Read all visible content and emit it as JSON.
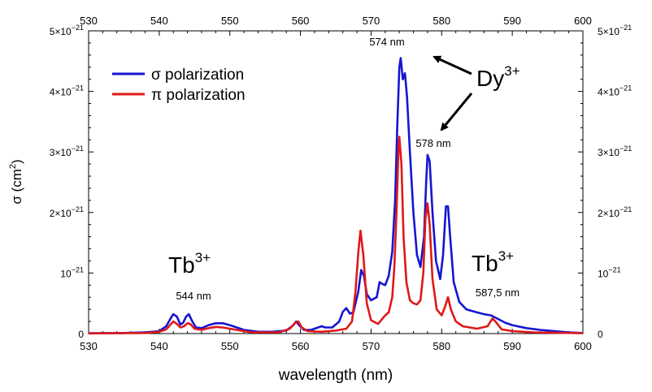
{
  "chart_data": {
    "type": "line",
    "title": "",
    "xlabel": "wavelength (nm)",
    "ylabel": "σ (cm²)",
    "ylabel_main": "σ (cm",
    "ylabel_sup": "2",
    "ylabel_close": ")",
    "xlim": [
      530,
      600
    ],
    "ylim": [
      0,
      5e-21
    ],
    "x_ticks": [
      530,
      540,
      550,
      560,
      570,
      580,
      590,
      600
    ],
    "x_tick_labels": [
      "530",
      "540",
      "550",
      "560",
      "570",
      "580",
      "590",
      "600"
    ],
    "y_ticks": [
      {
        "value": 0,
        "base": "0",
        "exp": ""
      },
      {
        "value": 1e-21,
        "base": "10",
        "exp": "−21"
      },
      {
        "value": 2e-21,
        "base": "2×10",
        "exp": "−21"
      },
      {
        "value": 3e-21,
        "base": "3×10",
        "exp": "−21"
      },
      {
        "value": 4e-21,
        "base": "4×10",
        "exp": "−21"
      },
      {
        "value": 5e-21,
        "base": "5×10",
        "exp": "−21"
      }
    ],
    "legend_position": "top-left",
    "series": [
      {
        "name": "σ polarization",
        "color": "#1515d0",
        "points": [
          [
            530,
            0.005
          ],
          [
            535,
            0.01
          ],
          [
            538,
            0.02
          ],
          [
            540,
            0.04
          ],
          [
            541,
            0.12
          ],
          [
            541.6,
            0.25
          ],
          [
            542,
            0.32
          ],
          [
            542.5,
            0.28
          ],
          [
            543,
            0.15
          ],
          [
            543.4,
            0.18
          ],
          [
            543.8,
            0.28
          ],
          [
            544.2,
            0.32
          ],
          [
            544.6,
            0.22
          ],
          [
            545.2,
            0.1
          ],
          [
            546,
            0.09
          ],
          [
            547,
            0.14
          ],
          [
            548,
            0.17
          ],
          [
            549,
            0.17
          ],
          [
            550,
            0.14
          ],
          [
            551,
            0.1
          ],
          [
            552,
            0.06
          ],
          [
            554,
            0.03
          ],
          [
            556,
            0.03
          ],
          [
            558,
            0.05
          ],
          [
            559,
            0.14
          ],
          [
            559.4,
            0.2
          ],
          [
            559.8,
            0.14
          ],
          [
            560.5,
            0.06
          ],
          [
            561.5,
            0.06
          ],
          [
            562.5,
            0.1
          ],
          [
            563,
            0.12
          ],
          [
            563.5,
            0.1
          ],
          [
            564.5,
            0.1
          ],
          [
            565.5,
            0.2
          ],
          [
            566,
            0.36
          ],
          [
            566.5,
            0.42
          ],
          [
            567,
            0.33
          ],
          [
            567.5,
            0.35
          ],
          [
            568.2,
            0.7
          ],
          [
            568.6,
            1.05
          ],
          [
            569,
            0.95
          ],
          [
            569.4,
            0.65
          ],
          [
            570,
            0.55
          ],
          [
            570.8,
            0.6
          ],
          [
            571.2,
            0.85
          ],
          [
            571.6,
            0.82
          ],
          [
            572,
            0.8
          ],
          [
            572.5,
            0.95
          ],
          [
            573,
            1.35
          ],
          [
            573.4,
            2.2
          ],
          [
            573.7,
            3.4
          ],
          [
            574,
            4.4
          ],
          [
            574.2,
            4.55
          ],
          [
            574.5,
            4.2
          ],
          [
            574.8,
            4.3
          ],
          [
            575.1,
            3.9
          ],
          [
            575.5,
            3.0
          ],
          [
            576,
            2.0
          ],
          [
            576.5,
            1.3
          ],
          [
            577,
            1.1
          ],
          [
            577.5,
            1.6
          ],
          [
            577.8,
            2.5
          ],
          [
            578,
            2.95
          ],
          [
            578.3,
            2.85
          ],
          [
            578.7,
            2.0
          ],
          [
            579.2,
            1.2
          ],
          [
            579.8,
            0.9
          ],
          [
            580.2,
            1.3
          ],
          [
            580.6,
            2.1
          ],
          [
            580.9,
            2.1
          ],
          [
            581.2,
            1.6
          ],
          [
            581.7,
            0.85
          ],
          [
            582.5,
            0.52
          ],
          [
            583.5,
            0.4
          ],
          [
            585,
            0.35
          ],
          [
            586,
            0.32
          ],
          [
            587,
            0.3
          ],
          [
            588,
            0.24
          ],
          [
            589,
            0.18
          ],
          [
            590,
            0.14
          ],
          [
            592,
            0.09
          ],
          [
            594,
            0.06
          ],
          [
            596,
            0.04
          ],
          [
            598,
            0.02
          ],
          [
            600,
            0.01
          ]
        ]
      },
      {
        "name": "π polarization",
        "color": "#e01818",
        "points": [
          [
            530,
            0.003
          ],
          [
            538,
            0.01
          ],
          [
            540,
            0.03
          ],
          [
            541,
            0.07
          ],
          [
            541.6,
            0.15
          ],
          [
            542,
            0.2
          ],
          [
            542.5,
            0.16
          ],
          [
            543,
            0.1
          ],
          [
            543.5,
            0.12
          ],
          [
            544,
            0.17
          ],
          [
            544.4,
            0.16
          ],
          [
            545,
            0.08
          ],
          [
            546,
            0.06
          ],
          [
            547,
            0.09
          ],
          [
            548,
            0.11
          ],
          [
            549,
            0.1
          ],
          [
            550,
            0.08
          ],
          [
            551,
            0.06
          ],
          [
            553,
            0.02
          ],
          [
            557,
            0.02
          ],
          [
            558.5,
            0.08
          ],
          [
            559.2,
            0.17
          ],
          [
            559.7,
            0.2
          ],
          [
            560.2,
            0.1
          ],
          [
            561,
            0.04
          ],
          [
            563,
            0.03
          ],
          [
            565,
            0.05
          ],
          [
            566.5,
            0.08
          ],
          [
            567.3,
            0.2
          ],
          [
            567.8,
            0.7
          ],
          [
            568.2,
            1.35
          ],
          [
            568.5,
            1.7
          ],
          [
            568.9,
            1.3
          ],
          [
            569.4,
            0.5
          ],
          [
            570,
            0.22
          ],
          [
            571,
            0.16
          ],
          [
            572,
            0.3
          ],
          [
            572.5,
            0.35
          ],
          [
            573,
            0.6
          ],
          [
            573.3,
            1.1
          ],
          [
            573.6,
            2.0
          ],
          [
            573.9,
            3.1
          ],
          [
            574,
            3.25
          ],
          [
            574.3,
            2.8
          ],
          [
            574.6,
            1.6
          ],
          [
            575,
            0.85
          ],
          [
            575.5,
            0.55
          ],
          [
            576,
            0.5
          ],
          [
            576.5,
            0.48
          ],
          [
            577,
            0.55
          ],
          [
            577.4,
            1.0
          ],
          [
            577.7,
            1.9
          ],
          [
            578,
            2.15
          ],
          [
            578.3,
            1.8
          ],
          [
            578.7,
            0.9
          ],
          [
            579.3,
            0.4
          ],
          [
            580,
            0.3
          ],
          [
            580.5,
            0.45
          ],
          [
            580.9,
            0.6
          ],
          [
            581.3,
            0.4
          ],
          [
            582,
            0.2
          ],
          [
            583,
            0.12
          ],
          [
            585,
            0.08
          ],
          [
            586.5,
            0.12
          ],
          [
            587.2,
            0.25
          ],
          [
            587.6,
            0.2
          ],
          [
            588.5,
            0.07
          ],
          [
            590,
            0.04
          ],
          [
            593,
            0.02
          ],
          [
            600,
            0.005
          ]
        ]
      }
    ],
    "annotations": {
      "peak_574": "574 nm",
      "peak_578": "578 nm",
      "ion_dy_base": "Dy",
      "ion_dy_sup": "3+",
      "ion_tb_left_base": "Tb",
      "ion_tb_left_sup": "3+",
      "peak_544": "544 nm",
      "ion_tb_right_base": "Tb",
      "ion_tb_right_sup": "3+",
      "peak_587": "587,5 nm"
    }
  }
}
